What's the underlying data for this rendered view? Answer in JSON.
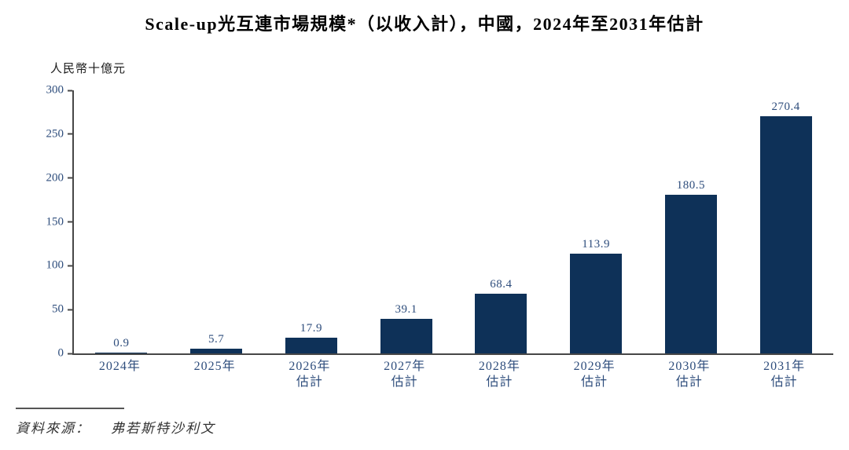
{
  "title": "Scale-up光互連市場規模*（以收入計），中國，2024年至2031年估計",
  "y_unit_label": "人民幣十億元",
  "source": {
    "label": "資料來源：",
    "value": "弗若斯特沙利文"
  },
  "colors": {
    "bar": "#0e3158",
    "axis_text": "#2e4d7c",
    "axis_line": "#474747",
    "title_text": "#000000",
    "source_text": "#333333"
  },
  "chart_data": {
    "type": "bar",
    "title": "Scale-up光互連市場規模*（以收入計），中國，2024年至2031年估計",
    "xlabel": "",
    "ylabel": "人民幣十億元",
    "categories": [
      "2024年",
      "2025年",
      "2026年\n估計",
      "2027年\n估計",
      "2028年\n估計",
      "2029年\n估計",
      "2030年\n估計",
      "2031年\n估計"
    ],
    "values": [
      0.9,
      5.7,
      17.9,
      39.1,
      68.4,
      113.9,
      180.5,
      270.4
    ],
    "value_labels": [
      "0.9",
      "5.7",
      "17.9",
      "39.1",
      "68.4",
      "113.9",
      "180.5",
      "270.4"
    ],
    "ylim": [
      0,
      300
    ],
    "yticks": [
      0,
      50,
      100,
      150,
      200,
      250,
      300
    ],
    "ytick_labels_desc": [
      "300",
      "250",
      "200",
      "150",
      "100",
      "50",
      "0"
    ],
    "grid": false,
    "legend_position": "none"
  }
}
